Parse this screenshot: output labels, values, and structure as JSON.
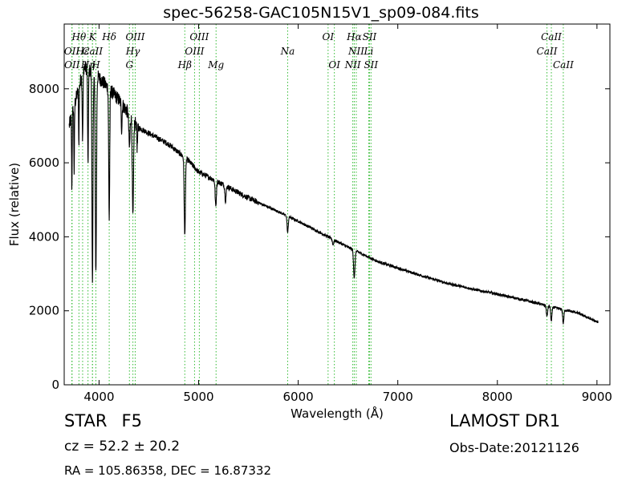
{
  "title": "spec-56258-GAC105N15V1_sp09-084.fits",
  "object_class": "STAR",
  "subclass": "F5",
  "cz_text": "cz = 52.2  ± 20.2",
  "radec_text": "RA = 105.86358, DEC = 16.87332",
  "survey": "LAMOST DR1",
  "obs_date": "Obs-Date:20121126",
  "colors": {
    "spectrum": "#000000",
    "line_marker": "#33bb33",
    "axes": "#000000"
  },
  "chart_data": {
    "type": "line",
    "xlabel": "Wavelength (Å)",
    "ylabel": "Flux (relative)",
    "xlim": [
      3650,
      9130
    ],
    "ylim": [
      0,
      9750
    ],
    "xticks": [
      4000,
      5000,
      6000,
      7000,
      8000,
      9000
    ],
    "yticks": [
      0,
      2000,
      4000,
      6000,
      8000
    ],
    "continuum": [
      [
        3700,
        7000
      ],
      [
        3850,
        8600
      ],
      [
        4000,
        8300
      ],
      [
        4200,
        7700
      ],
      [
        4400,
        6950
      ],
      [
        4700,
        6500
      ],
      [
        4900,
        6050
      ],
      [
        5000,
        5750
      ],
      [
        5200,
        5480
      ],
      [
        5500,
        5050
      ],
      [
        5800,
        4680
      ],
      [
        6000,
        4420
      ],
      [
        6300,
        4000
      ],
      [
        6500,
        3720
      ],
      [
        6800,
        3330
      ],
      [
        7200,
        2980
      ],
      [
        7500,
        2740
      ],
      [
        7800,
        2560
      ],
      [
        8000,
        2450
      ],
      [
        8300,
        2270
      ],
      [
        8600,
        2070
      ],
      [
        8800,
        1950
      ],
      [
        9000,
        1700
      ]
    ],
    "absorption": [
      [
        3727,
        2000,
        3
      ],
      [
        3750,
        1800,
        3
      ],
      [
        3797,
        1500,
        3
      ],
      [
        3835,
        1800,
        4
      ],
      [
        3889,
        2600,
        4
      ],
      [
        3934,
        5800,
        5
      ],
      [
        3968,
        5300,
        6
      ],
      [
        4102,
        3500,
        5
      ],
      [
        4227,
        700,
        4
      ],
      [
        4305,
        900,
        6
      ],
      [
        4340,
        2700,
        6
      ],
      [
        4383,
        600,
        4
      ],
      [
        4861,
        2100,
        6
      ],
      [
        5172,
        700,
        6
      ],
      [
        5270,
        400,
        6
      ],
      [
        5894,
        450,
        6
      ],
      [
        6350,
        150,
        6
      ],
      [
        6563,
        750,
        7
      ],
      [
        8498,
        300,
        6
      ],
      [
        8542,
        400,
        6
      ],
      [
        8662,
        380,
        6
      ]
    ],
    "lines": [
      {
        "name": "OII",
        "wavelength": 3727,
        "row": 2
      },
      {
        "name": "OII",
        "wavelength": 3729,
        "row": 3
      },
      {
        "name": "Hθ",
        "wavelength": 3798,
        "row": 1
      },
      {
        "name": "Hε",
        "wavelength": 3835,
        "row": 2
      },
      {
        "name": "Hη",
        "wavelength": 3889,
        "row": 3
      },
      {
        "name": "K",
        "wavelength": 3934,
        "row": 1
      },
      {
        "name": "CaII",
        "wavelength": 3934,
        "row": 2
      },
      {
        "name": "H",
        "wavelength": 3968,
        "row": 3
      },
      {
        "name": "Hδ",
        "wavelength": 4102,
        "row": 1
      },
      {
        "name": "Hγ",
        "wavelength": 4340,
        "row": 2
      },
      {
        "name": "G",
        "wavelength": 4305,
        "row": 3
      },
      {
        "name": "OIII",
        "wavelength": 4363,
        "row": 1
      },
      {
        "name": "Hβ",
        "wavelength": 4861,
        "row": 3
      },
      {
        "name": "OIII",
        "wavelength": 4959,
        "row": 2
      },
      {
        "name": "OIII",
        "wavelength": 5007,
        "row": 1
      },
      {
        "name": "Mg",
        "wavelength": 5175,
        "row": 3
      },
      {
        "name": "Na",
        "wavelength": 5894,
        "row": 2
      },
      {
        "name": "OI",
        "wavelength": 6300,
        "row": 1
      },
      {
        "name": "OI",
        "wavelength": 6363,
        "row": 3
      },
      {
        "name": "NII",
        "wavelength": 6548,
        "row": 3
      },
      {
        "name": "Hα",
        "wavelength": 6563,
        "row": 1
      },
      {
        "name": "NII",
        "wavelength": 6583,
        "row": 2
      },
      {
        "name": "SII",
        "wavelength": 6716,
        "row": 1
      },
      {
        "name": "Li",
        "wavelength": 6708,
        "row": 2
      },
      {
        "name": "SII",
        "wavelength": 6731,
        "row": 3
      },
      {
        "name": "CaII",
        "wavelength": 8498,
        "row": 2
      },
      {
        "name": "CaII",
        "wavelength": 8542,
        "row": 1
      },
      {
        "name": "CaII",
        "wavelength": 8662,
        "row": 3
      }
    ]
  }
}
